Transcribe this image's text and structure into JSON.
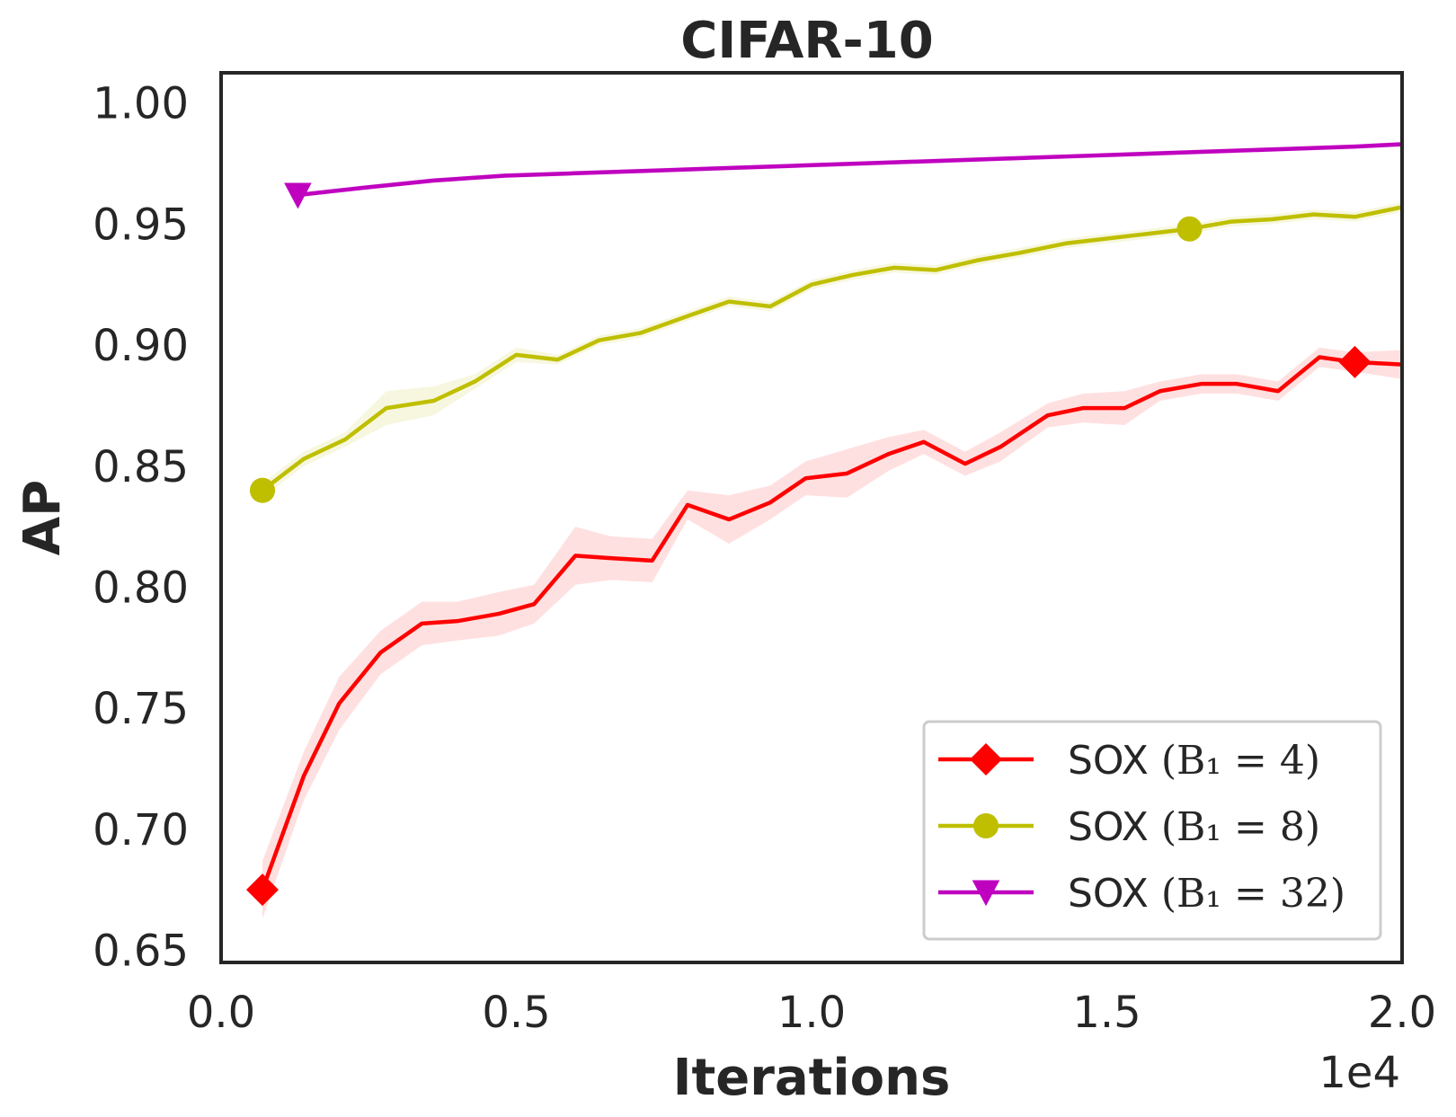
{
  "chart_data": {
    "type": "line",
    "title": "CIFAR-10",
    "xlabel": "Iterations",
    "ylabel": "AP",
    "x_offset_label": "1e4",
    "xlim": [
      0,
      20000
    ],
    "ylim": [
      0.645,
      1.0125
    ],
    "x_ticks": [
      0,
      5000,
      10000,
      15000,
      20000
    ],
    "x_tick_labels": [
      "0.0",
      "0.5",
      "1.0",
      "1.5",
      "2.0"
    ],
    "y_ticks": [
      0.65,
      0.7,
      0.75,
      0.8,
      0.85,
      0.9,
      0.95,
      1.0
    ],
    "y_tick_labels": [
      "0.65",
      "0.70",
      "0.75",
      "0.80",
      "0.85",
      "0.90",
      "0.95",
      "1.00"
    ],
    "grid": false,
    "legend_position": "bottom-right",
    "series": [
      {
        "name": "SOX",
        "legend_math": "B₁ = 4",
        "color": "#ff0000",
        "marker": "diamond",
        "marker_every": [
          0,
          28
        ],
        "x": [
          700,
          1400,
          2000,
          2700,
          3400,
          4000,
          4700,
          5300,
          6000,
          6600,
          7300,
          7900,
          8600,
          9300,
          9900,
          10600,
          11300,
          11900,
          12600,
          13200,
          14000,
          14600,
          15300,
          15900,
          16600,
          17200,
          17900,
          18600,
          19200,
          20000
        ],
        "values": [
          0.675,
          0.722,
          0.752,
          0.773,
          0.785,
          0.786,
          0.789,
          0.793,
          0.813,
          0.812,
          0.811,
          0.834,
          0.828,
          0.835,
          0.845,
          0.847,
          0.855,
          0.86,
          0.851,
          0.858,
          0.871,
          0.874,
          0.874,
          0.881,
          0.884,
          0.884,
          0.881,
          0.895,
          0.893,
          0.892
        ],
        "band": [
          0.012,
          0.01,
          0.011,
          0.009,
          0.009,
          0.008,
          0.009,
          0.008,
          0.012,
          0.009,
          0.009,
          0.006,
          0.01,
          0.007,
          0.007,
          0.01,
          0.007,
          0.005,
          0.005,
          0.006,
          0.005,
          0.006,
          0.007,
          0.004,
          0.004,
          0.004,
          0.004,
          0.004,
          0.004,
          0.006
        ]
      },
      {
        "name": "SOX",
        "legend_math": "B₁ = 8",
        "color": "#bfbf00",
        "marker": "circle",
        "marker_every": [
          0,
          22
        ],
        "x": [
          700,
          1400,
          2100,
          2800,
          3600,
          4300,
          5000,
          5700,
          6400,
          7100,
          7900,
          8600,
          9300,
          10000,
          10700,
          11400,
          12100,
          12800,
          13500,
          14300,
          15000,
          15700,
          16400,
          17100,
          17800,
          18500,
          19200,
          20000
        ],
        "values": [
          0.84,
          0.853,
          0.861,
          0.874,
          0.877,
          0.885,
          0.896,
          0.894,
          0.902,
          0.905,
          0.912,
          0.918,
          0.916,
          0.925,
          0.929,
          0.932,
          0.931,
          0.935,
          0.938,
          0.942,
          0.944,
          0.946,
          0.948,
          0.951,
          0.952,
          0.954,
          0.953,
          0.957
        ],
        "band": [
          0.003,
          0.003,
          0.003,
          0.007,
          0.006,
          0.003,
          0.003,
          0.002,
          0.002,
          0.002,
          0.002,
          0.002,
          0.002,
          0.002,
          0.002,
          0.002,
          0.002,
          0.002,
          0.002,
          0.002,
          0.002,
          0.002,
          0.002,
          0.002,
          0.002,
          0.002,
          0.002,
          0.002
        ]
      },
      {
        "name": "SOX",
        "legend_math": "B₁ = 32",
        "color": "#bf00bf",
        "marker": "triangle-down",
        "marker_every": [
          0
        ],
        "x": [
          1300,
          2400,
          3600,
          4800,
          6000,
          7200,
          8400,
          9600,
          10800,
          12000,
          13200,
          14400,
          15600,
          16800,
          18000,
          19200,
          20000
        ],
        "values": [
          0.962,
          0.965,
          0.968,
          0.97,
          0.971,
          0.972,
          0.973,
          0.974,
          0.975,
          0.976,
          0.977,
          0.978,
          0.979,
          0.98,
          0.981,
          0.982,
          0.983
        ],
        "band": [
          0.001,
          0.001,
          0.001,
          0.001,
          0.001,
          0.001,
          0.001,
          0.001,
          0.001,
          0.001,
          0.001,
          0.001,
          0.001,
          0.001,
          0.001,
          0.001,
          0.001
        ]
      }
    ]
  }
}
